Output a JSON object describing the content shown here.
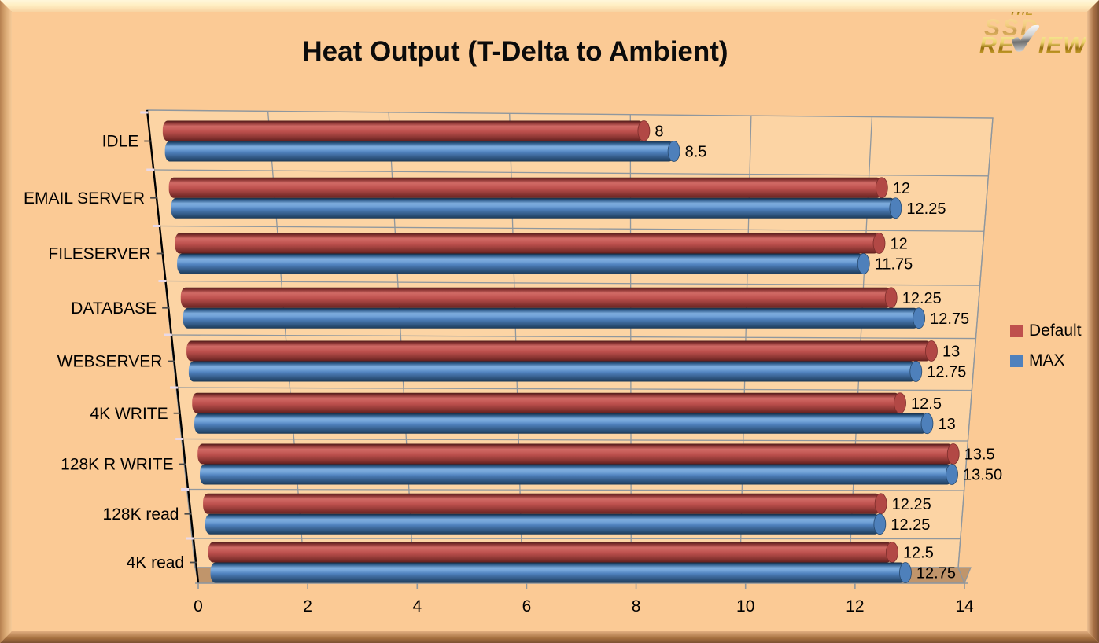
{
  "logo": {
    "the": "THE",
    "ssd": "SSD",
    "review_left": "RE",
    "review_right": "IEW",
    "check_glyph": "✔"
  },
  "colors": {
    "background": "#fbca95",
    "wall": "#fcd4a4",
    "floor": "#c0956b",
    "gridline": "#8f979e",
    "axis": "#000000",
    "separator_tick": "#e8d9e8",
    "category_tick": "#4a4a4a"
  },
  "chart_data": {
    "type": "bar",
    "orientation": "horizontal",
    "style": "3d-cylinder",
    "title": "Heat Output (T-Delta to Ambient)",
    "xlabel": "",
    "ylabel": "",
    "xlim": [
      0,
      14
    ],
    "xticks": [
      0,
      2,
      4,
      6,
      8,
      10,
      12,
      14
    ],
    "grid": true,
    "legend_position": "right",
    "categories": [
      "IDLE",
      "EMAIL SERVER",
      "FILESERVER",
      "DATABASE",
      "WEBSERVER",
      "4K WRITE",
      "128K R WRITE",
      "128K read",
      "4K read"
    ],
    "series": [
      {
        "name": "Default",
        "color": "#bf504d",
        "values": [
          8,
          12,
          12,
          12.25,
          13,
          12.5,
          13.5,
          12.25,
          12.5
        ],
        "labels": [
          "8",
          "12",
          "12",
          "12.25",
          "13",
          "12.5",
          "13.5",
          "12.25",
          "12.5"
        ]
      },
      {
        "name": "MAX",
        "color": "#4f81bd",
        "values": [
          8.5,
          12.25,
          11.75,
          12.75,
          12.75,
          13,
          13.5,
          12.25,
          12.75
        ],
        "labels": [
          "8.5",
          "12.25",
          "11.75",
          "12.75",
          "12.75",
          "13",
          "13.50",
          "12.25",
          "12.75"
        ]
      }
    ]
  }
}
